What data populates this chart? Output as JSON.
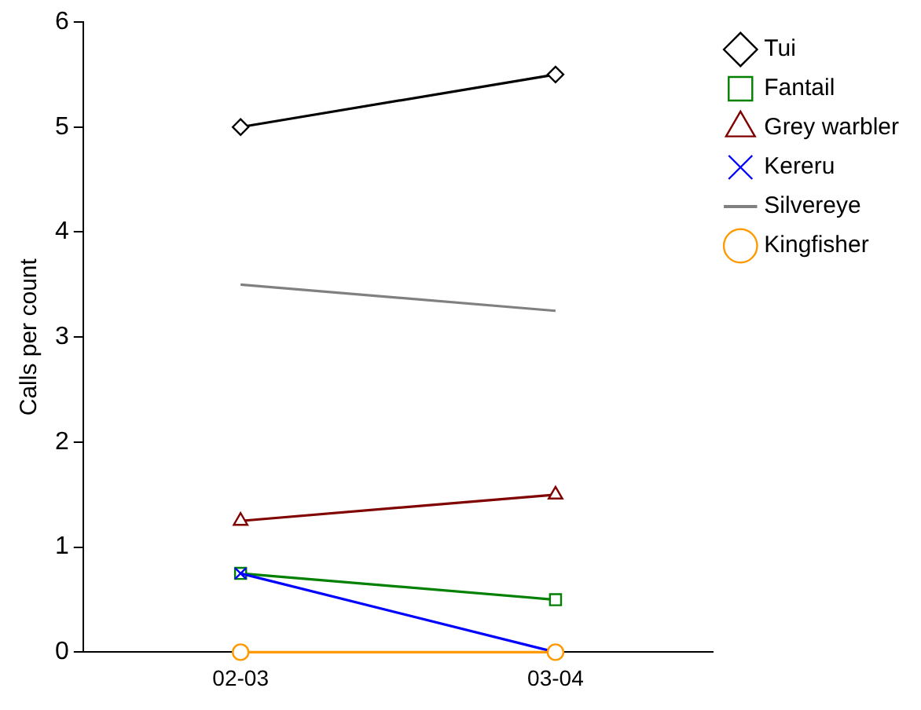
{
  "chart_data": {
    "type": "line",
    "ylabel": "Calls per count",
    "categories": [
      "02-03",
      "03-04"
    ],
    "series": [
      {
        "name": "Tui",
        "color": "#000000",
        "marker": "diamond",
        "values": [
          5,
          5.5
        ]
      },
      {
        "name": "Fantail",
        "color": "#008000",
        "marker": "square",
        "values": [
          0.75,
          0.5
        ]
      },
      {
        "name": "Grey warbler",
        "color": "#800000",
        "marker": "triangle",
        "values": [
          1.25,
          1.5
        ]
      },
      {
        "name": "Kereru",
        "color": "#0000ff",
        "marker": "cross",
        "values": [
          0.75,
          0
        ]
      },
      {
        "name": "Silvereye",
        "color": "#808080",
        "marker": "none",
        "values": [
          3.5,
          3.25
        ]
      },
      {
        "name": "Kingfisher",
        "color": "#ff9900",
        "marker": "circle",
        "values": [
          0,
          0
        ]
      }
    ],
    "ylim": [
      0,
      6
    ],
    "yticks": [
      0,
      1,
      2,
      3,
      4,
      5,
      6
    ],
    "grid": false,
    "legend": "top right"
  }
}
